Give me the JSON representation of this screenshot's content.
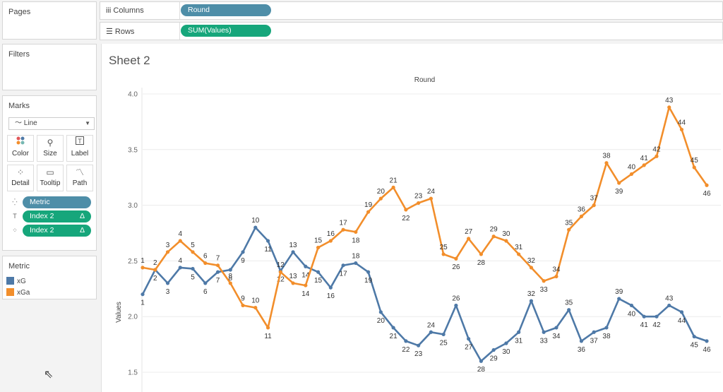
{
  "pages": {
    "title": "Pages"
  },
  "filters": {
    "title": "Filters"
  },
  "marks": {
    "title": "Marks",
    "mark_type": "Line",
    "buttons": {
      "color": "Color",
      "size": "Size",
      "label": "Label",
      "detail": "Detail",
      "tooltip": "Tooltip",
      "path": "Path"
    },
    "pills": [
      {
        "label": "Metric",
        "delta": ""
      },
      {
        "label": "Index 2",
        "delta": "Δ"
      },
      {
        "label": "Index 2",
        "delta": "Δ"
      }
    ]
  },
  "legend": {
    "title": "Metric",
    "items": [
      {
        "label": "xG",
        "color": "#4e79a7"
      },
      {
        "label": "xGa",
        "color": "#f28e2b"
      }
    ]
  },
  "shelves": {
    "columns_label": "Columns",
    "columns_pill": "Round",
    "rows_label": "Rows",
    "rows_pill": "SUM(Values)"
  },
  "sheet": {
    "title": "Sheet 2"
  },
  "chart_data": {
    "type": "line",
    "title": "Round",
    "xlabel": "",
    "ylabel": "Values",
    "ylim": [
      1.5,
      4.0
    ],
    "yticks": [
      "1.5",
      "2.0",
      "2.5",
      "3.0",
      "3.5",
      "4.0"
    ],
    "x": [
      1,
      2,
      3,
      4,
      5,
      6,
      7,
      8,
      9,
      10,
      11,
      12,
      13,
      14,
      15,
      16,
      17,
      18,
      19,
      20,
      21,
      22,
      23,
      24,
      25,
      26,
      27,
      28,
      29,
      30,
      31,
      32,
      33,
      34,
      35,
      36,
      37,
      38,
      39,
      40,
      41,
      42,
      43,
      44,
      45,
      46
    ],
    "grid": true,
    "series": [
      {
        "name": "xG",
        "color": "#4e79a7",
        "values": [
          2.2,
          2.42,
          2.3,
          2.44,
          2.43,
          2.3,
          2.4,
          2.42,
          2.58,
          2.8,
          2.68,
          2.41,
          2.58,
          2.45,
          2.4,
          2.26,
          2.46,
          2.48,
          2.4,
          2.04,
          1.9,
          1.78,
          1.74,
          1.86,
          1.84,
          2.1,
          1.8,
          1.6,
          1.7,
          1.76,
          1.86,
          2.14,
          1.86,
          1.9,
          2.06,
          1.78,
          1.86,
          1.9,
          2.16,
          2.1,
          2.0,
          2.0,
          2.1,
          2.04,
          1.82,
          1.78
        ]
      },
      {
        "name": "xGa",
        "color": "#f28e2b",
        "values": [
          2.44,
          2.42,
          2.58,
          2.68,
          2.58,
          2.48,
          2.46,
          2.3,
          2.1,
          2.08,
          1.9,
          2.4,
          2.3,
          2.28,
          2.62,
          2.68,
          2.78,
          2.76,
          2.94,
          3.06,
          3.16,
          2.96,
          3.02,
          3.06,
          2.56,
          2.52,
          2.7,
          2.56,
          2.72,
          2.68,
          2.56,
          2.44,
          2.32,
          2.36,
          2.78,
          2.9,
          3.0,
          3.38,
          3.2,
          3.28,
          3.36,
          3.44,
          3.88,
          3.68,
          3.34,
          3.18
        ]
      }
    ]
  }
}
